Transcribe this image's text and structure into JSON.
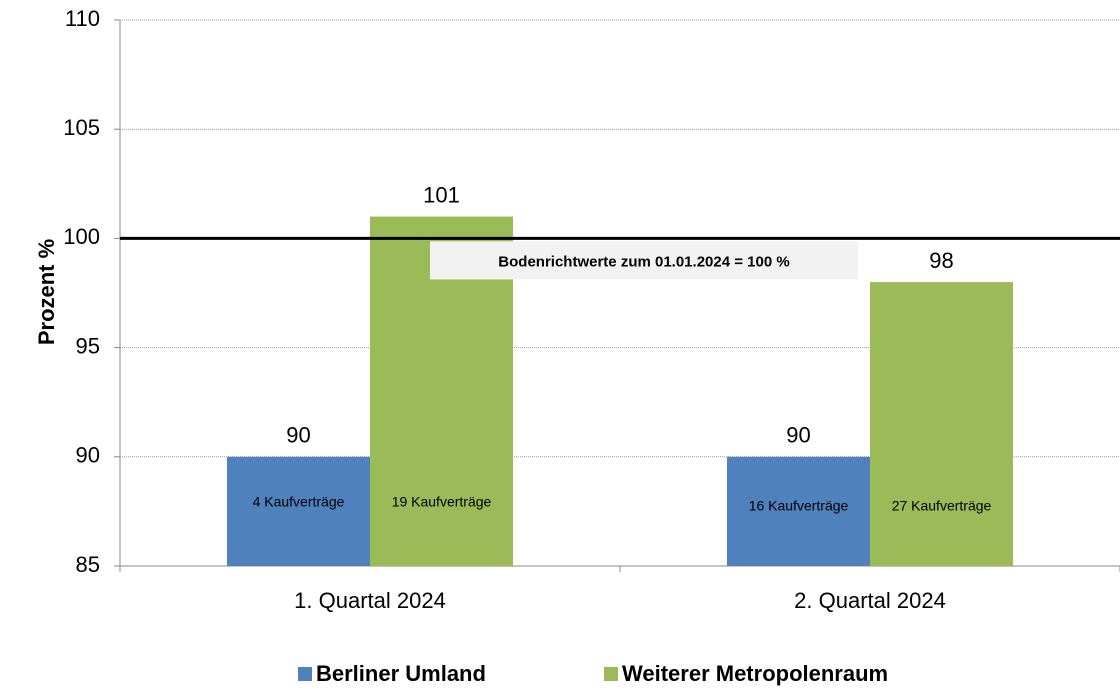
{
  "chart_data": {
    "type": "bar",
    "y_label": "Prozent %",
    "categories": [
      "1. Quartal 2024",
      "2. Quartal 2024"
    ],
    "series": [
      {
        "name": "Berliner Umland",
        "color": "#4f81bd",
        "values": [
          90,
          90
        ],
        "inner_labels": [
          "4 Kaufverträge",
          "16 Kaufverträge"
        ]
      },
      {
        "name": "Weiterer Metropolenraum",
        "color": "#9bbb59",
        "values": [
          101,
          98
        ],
        "inner_labels": [
          "19 Kaufverträge",
          "27 Kaufverträge"
        ]
      }
    ],
    "reference_line": {
      "value": 100,
      "label": "Bodenrichtwerte zum 01.01.2024 = 100 %"
    },
    "ylim": [
      85,
      110
    ],
    "yticks": [
      85,
      90,
      95,
      100,
      105,
      110
    ],
    "grid": true,
    "legend": "bottom"
  }
}
